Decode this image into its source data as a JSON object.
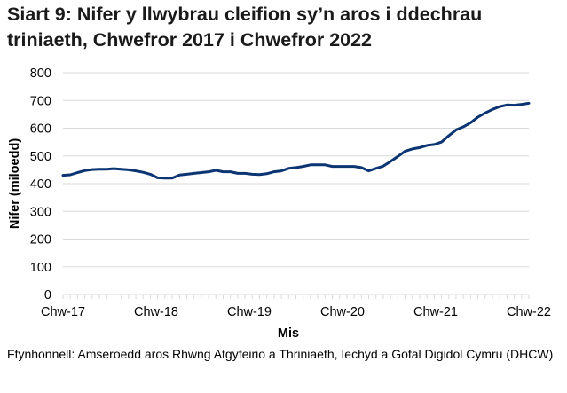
{
  "title": "Siart 9: Nifer y llwybrau cleifion sy’n aros i ddechrau triniaeth, Chwefror 2017 i Chwefror 2022",
  "source": "Ffynhonnell: Amseroedd aros Rhwng Atgyfeirio a Thriniaeth, Iechyd a Gofal Digidol Cymru (DHCW)",
  "colors": {
    "line": "#0b3473",
    "grid": "#d9d9d9",
    "axis": "#d9d9d9"
  },
  "chart_data": {
    "type": "line",
    "title": "Siart 9: Nifer y llwybrau cleifion sy’n aros i ddechrau triniaeth, Chwefror 2017 i Chwefror 2022",
    "xlabel": "Mis",
    "ylabel": "Nifer (miloedd)",
    "ylim": [
      0,
      800
    ],
    "yticks": [
      0,
      100,
      200,
      300,
      400,
      500,
      600,
      700,
      800
    ],
    "xtick_labels": [
      "Chw-17",
      "Chw-18",
      "Chw-19",
      "Chw-20",
      "Chw-21",
      "Chw-22"
    ],
    "grid": true,
    "legend": null,
    "x_start": "Chw-17",
    "x_end": "Chw-22",
    "frequency": "monthly",
    "series": [
      {
        "name": "Nifer (miloedd)",
        "values": [
          430,
          432,
          440,
          447,
          451,
          452,
          452,
          454,
          452,
          450,
          446,
          441,
          434,
          421,
          420,
          420,
          431,
          434,
          437,
          440,
          443,
          448,
          443,
          443,
          437,
          437,
          434,
          433,
          436,
          443,
          446,
          455,
          458,
          462,
          468,
          468,
          468,
          462,
          462,
          462,
          462,
          458,
          446,
          455,
          463,
          480,
          498,
          517,
          525,
          530,
          538,
          541,
          550,
          573,
          594,
          605,
          620,
          640,
          655,
          668,
          678,
          684,
          683,
          686,
          690
        ]
      }
    ]
  }
}
